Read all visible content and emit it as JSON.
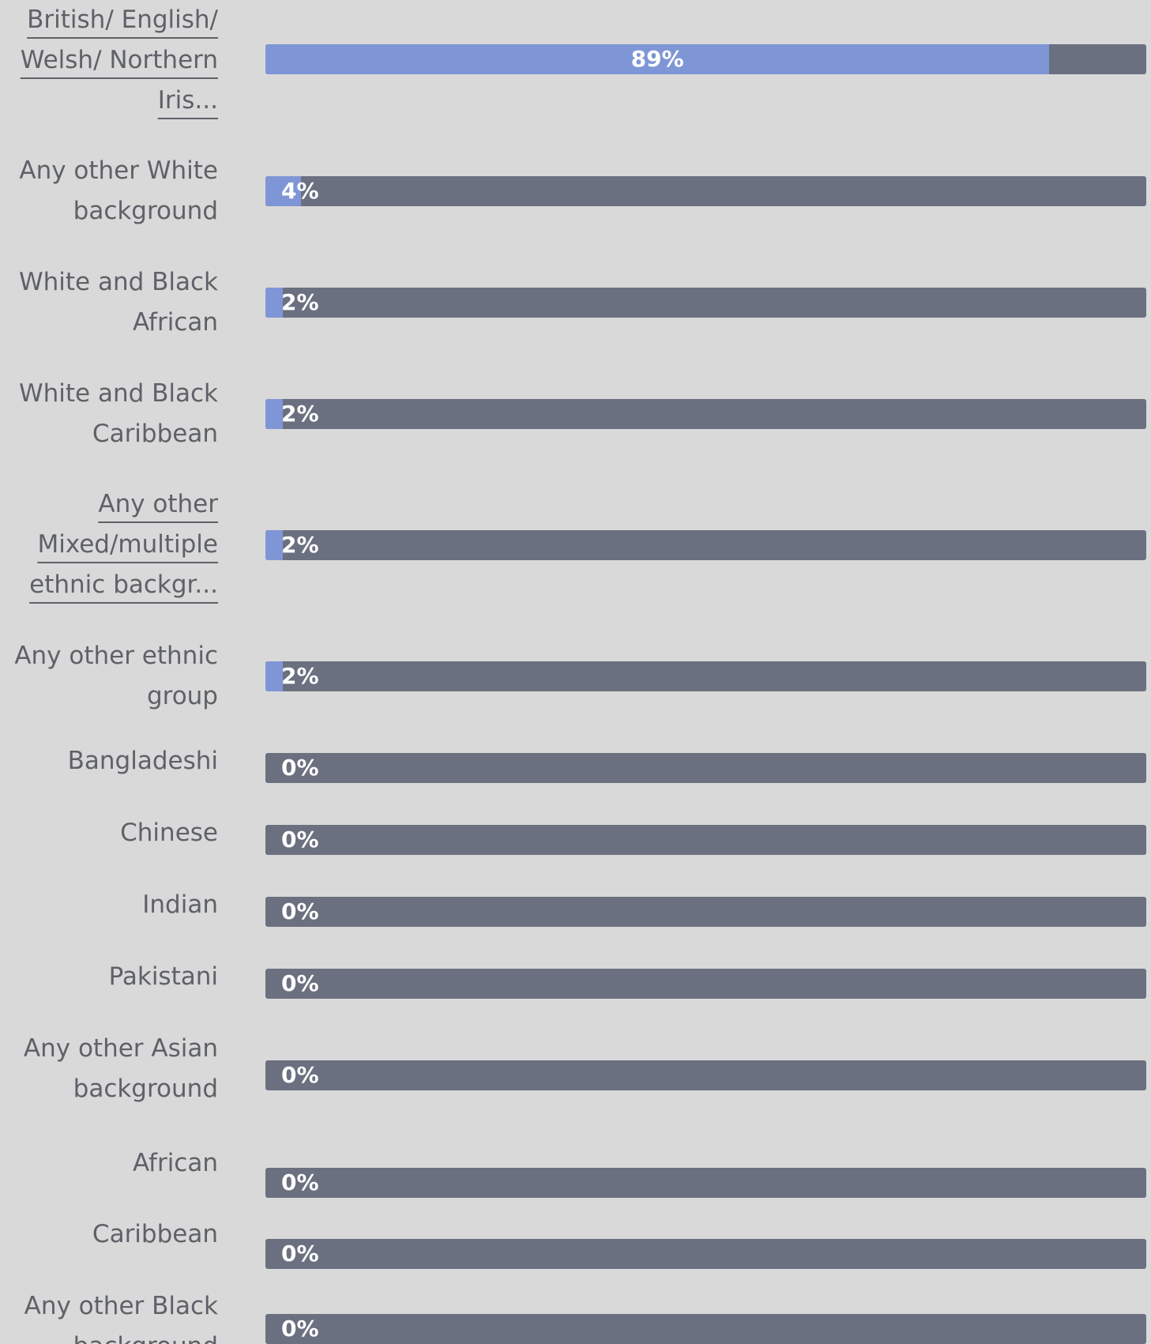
{
  "colors": {
    "background": "#d9d9d9",
    "track": "#6b7080",
    "fill": "#7f96d6",
    "label_text": "#5f6168",
    "value_text": "#ffffff"
  },
  "chart_data": {
    "type": "bar",
    "orientation": "horizontal",
    "value_unit": "%",
    "xlim": [
      0,
      100
    ],
    "rows": [
      {
        "label": "British/ English/ Welsh/ Northern Iris...",
        "value": 89,
        "display": "89%",
        "linked": true
      },
      {
        "label": "Any other White background",
        "value": 4,
        "display": "4%",
        "linked": false
      },
      {
        "label": "White and Black African",
        "value": 2,
        "display": "2%",
        "linked": false
      },
      {
        "label": "White and Black Caribbean",
        "value": 2,
        "display": "2%",
        "linked": false
      },
      {
        "label": "Any other Mixed/multiple ethnic backgr...",
        "value": 2,
        "display": "2%",
        "linked": true
      },
      {
        "label": "Any other ethnic group",
        "value": 2,
        "display": "2%",
        "linked": false
      },
      {
        "label": "Bangladeshi",
        "value": 0,
        "display": "0%",
        "linked": false
      },
      {
        "label": "Chinese",
        "value": 0,
        "display": "0%",
        "linked": false
      },
      {
        "label": "Indian",
        "value": 0,
        "display": "0%",
        "linked": false
      },
      {
        "label": "Pakistani",
        "value": 0,
        "display": "0%",
        "linked": false
      },
      {
        "label": "Any other Asian background",
        "value": 0,
        "display": "0%",
        "linked": false
      },
      {
        "label": "African",
        "value": 0,
        "display": "0%",
        "linked": false
      },
      {
        "label": "Caribbean",
        "value": 0,
        "display": "0%",
        "linked": false
      },
      {
        "label": "Any other Black background",
        "value": 0,
        "display": "0%",
        "linked": false
      }
    ]
  }
}
